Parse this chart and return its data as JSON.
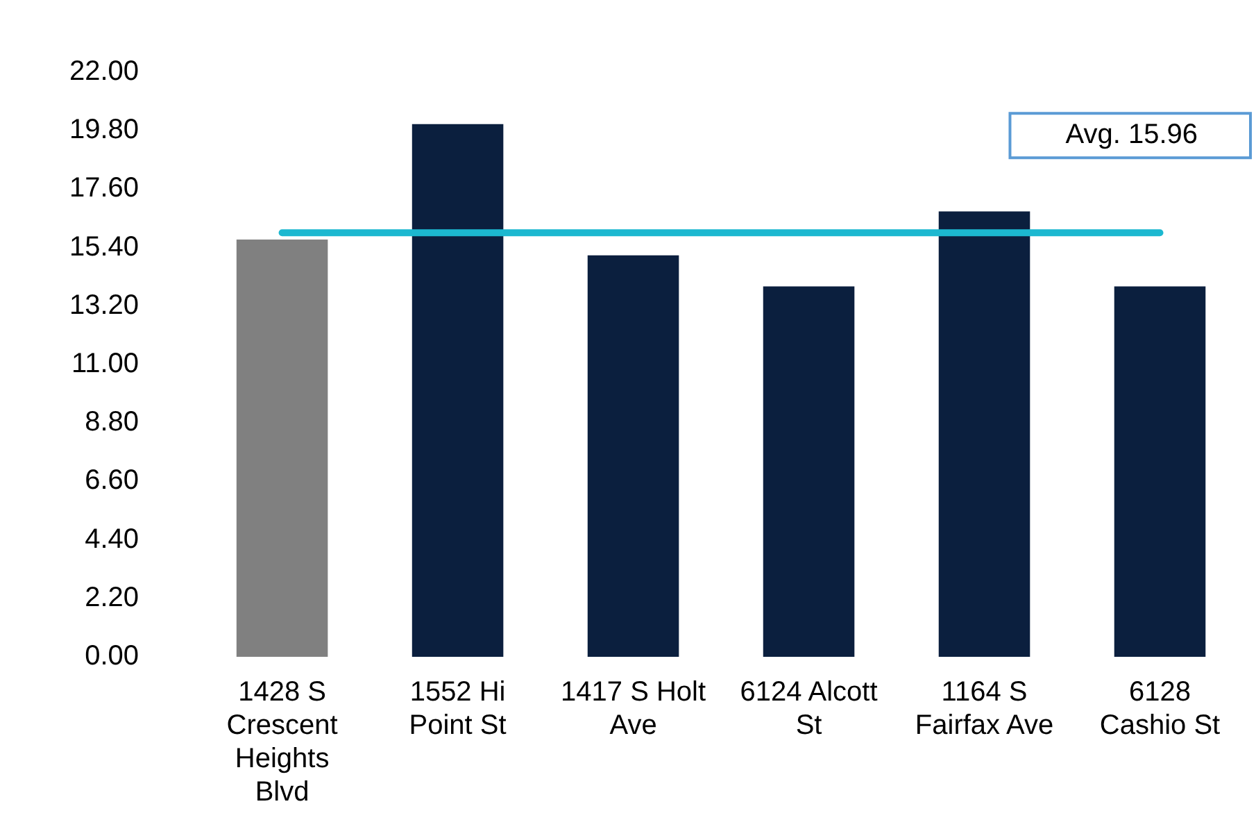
{
  "chart_data": {
    "type": "bar",
    "categories": [
      "1428 S Crescent Heights Blvd",
      "1552 Hi Point St",
      "1417 S Holt Ave",
      "6124 Alcott St",
      "1164 S Fairfax Ave",
      "6128 Cashio St"
    ],
    "values": [
      15.7,
      20.05,
      15.11,
      13.94,
      16.76,
      13.94
    ],
    "colors": [
      "#808080",
      "#0b1f3e",
      "#0b1f3e",
      "#0b1f3e",
      "#0b1f3e",
      "#0b1f3e"
    ],
    "ylim": [
      0,
      22
    ],
    "yticks": [
      {
        "value": 0,
        "label": "0.00"
      },
      {
        "value": 2.2,
        "label": "2.20"
      },
      {
        "value": 4.4,
        "label": "4.40"
      },
      {
        "value": 6.6,
        "label": "6.60"
      },
      {
        "value": 8.8,
        "label": "8.80"
      },
      {
        "value": 11,
        "label": "11.00"
      },
      {
        "value": 13.2,
        "label": "13.20"
      },
      {
        "value": 15.4,
        "label": "15.40"
      },
      {
        "value": 17.6,
        "label": "17.60"
      },
      {
        "value": 19.8,
        "label": "19.80"
      },
      {
        "value": 22,
        "label": "22.00"
      }
    ],
    "ref_lines": [
      {
        "axis": "y",
        "value": 15.96,
        "label": "Avg. 15.96",
        "color": "#1cb8d0"
      }
    ],
    "grid": false,
    "legend": false
  }
}
